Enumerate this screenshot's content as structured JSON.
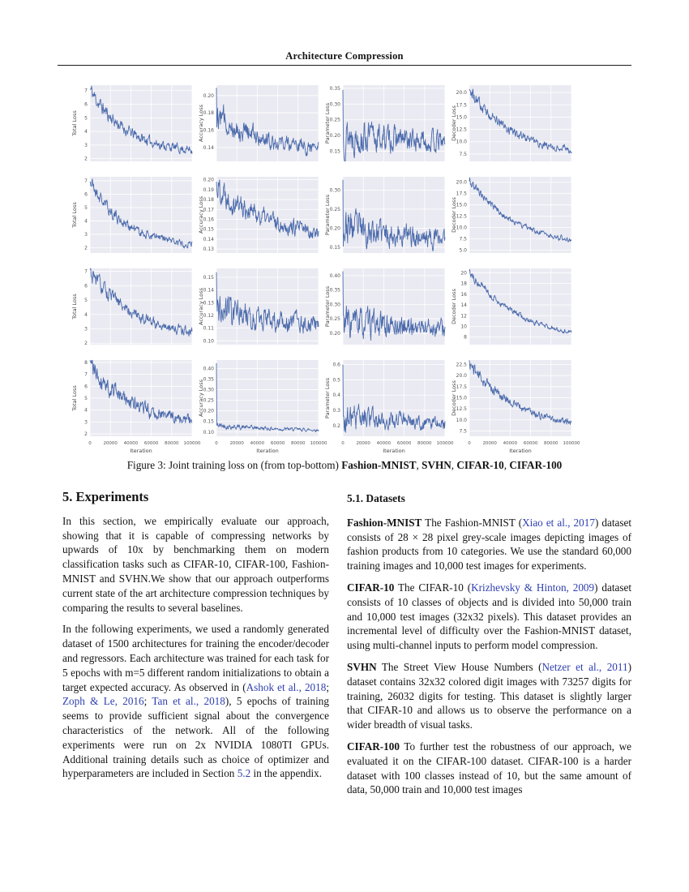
{
  "header": {
    "running_title": "Architecture Compression"
  },
  "figure": {
    "type": "line",
    "line_color": "#4a6aab",
    "bg_color": "#eaeaf2",
    "grid_color": "#ffffff",
    "xlabel": "Iteration",
    "xlim": [
      0,
      100000
    ],
    "xtick_labels": [
      "0",
      "20000",
      "40000",
      "60000",
      "80000",
      "100000"
    ],
    "datasets": [
      "Fashion-MNIST",
      "SVHN",
      "CIFAR-10",
      "CIFAR-100"
    ],
    "caption_segments": [
      {
        "k": "plain",
        "t": "Figure 3: Joint training loss on (from top-bottom) "
      },
      {
        "k": "bold",
        "t": "Fashion-MNIST"
      },
      {
        "k": "plain",
        "t": ", "
      },
      {
        "k": "bold",
        "t": "SVHN"
      },
      {
        "k": "plain",
        "t": ", "
      },
      {
        "k": "bold",
        "t": "CIFAR-10"
      },
      {
        "k": "plain",
        "t": ", "
      },
      {
        "k": "bold",
        "t": "CIFAR-100"
      }
    ],
    "rows": [
      {
        "dataset": "Fashion-MNIST",
        "plots": [
          {
            "ylabel": "Total Loss",
            "ylim": [
              1.8,
              7.4
            ],
            "yticks": [
              2,
              3,
              4,
              5,
              6,
              7
            ],
            "ytick_labels": [
              "2",
              "3",
              "4",
              "5",
              "6",
              "7"
            ],
            "curve": {
              "seed": 11,
              "start": 7.1,
              "end": 2.35,
              "decay": 2.8,
              "noise": 0.5,
              "spike": null
            }
          },
          {
            "ylabel": "Accuracy Loss",
            "ylim": [
              0.124,
              0.212
            ],
            "yticks": [
              0.14,
              0.16,
              0.18,
              0.2
            ],
            "ytick_labels": [
              "0.14",
              "0.16",
              "0.18",
              "0.20"
            ],
            "curve": {
              "seed": 12,
              "start": 0.178,
              "end": 0.134,
              "decay": 2.0,
              "noise": 0.013,
              "spike": 0.209
            }
          },
          {
            "ylabel": "Parameter Loss",
            "ylim": [
              0.118,
              0.36
            ],
            "yticks": [
              0.15,
              0.2,
              0.25,
              0.3,
              0.35
            ],
            "ytick_labels": [
              "0.15",
              "0.20",
              "0.25",
              "0.30",
              "0.35"
            ],
            "curve": {
              "seed": 13,
              "start": 0.205,
              "end": 0.163,
              "decay": 1.0,
              "noise": 0.05,
              "spike": 0.345
            }
          },
          {
            "ylabel": "Decoder Loss",
            "ylim": [
              6.0,
              21.5
            ],
            "yticks": [
              7.5,
              10.0,
              12.5,
              15.0,
              17.5,
              20.0
            ],
            "ytick_labels": [
              "7.5",
              "10.0",
              "12.5",
              "15.0",
              "17.5",
              "20.0"
            ],
            "curve": {
              "seed": 14,
              "start": 20.8,
              "end": 7.0,
              "decay": 2.4,
              "noise": 1.1,
              "spike": null
            }
          }
        ]
      },
      {
        "dataset": "SVHN",
        "plots": [
          {
            "ylabel": "Total Loss",
            "ylim": [
              1.6,
              7.3
            ],
            "yticks": [
              2,
              3,
              4,
              5,
              6,
              7
            ],
            "ytick_labels": [
              "2",
              "3",
              "4",
              "5",
              "6",
              "7"
            ],
            "curve": {
              "seed": 21,
              "start": 7.0,
              "end": 2.05,
              "decay": 3.0,
              "noise": 0.45,
              "spike": null
            }
          },
          {
            "ylabel": "Accuracy Loss",
            "ylim": [
              0.126,
              0.203
            ],
            "yticks": [
              0.13,
              0.14,
              0.15,
              0.16,
              0.17,
              0.18,
              0.19,
              0.2
            ],
            "ytick_labels": [
              "0.13",
              "0.14",
              "0.15",
              "0.16",
              "0.17",
              "0.18",
              "0.19",
              "0.20"
            ],
            "curve": {
              "seed": 22,
              "start": 0.195,
              "end": 0.137,
              "decay": 1.8,
              "noise": 0.012,
              "spike": null
            }
          },
          {
            "ylabel": "Parameter Loss",
            "ylim": [
              0.135,
              0.335
            ],
            "yticks": [
              0.15,
              0.2,
              0.25,
              0.3
            ],
            "ytick_labels": [
              "0.15",
              "0.20",
              "0.25",
              "0.30"
            ],
            "curve": {
              "seed": 23,
              "start": 0.205,
              "end": 0.156,
              "decay": 1.1,
              "noise": 0.04,
              "spike": 0.327
            }
          },
          {
            "ylabel": "Decoder Loss",
            "ylim": [
              4.4,
              21.2
            ],
            "yticks": [
              5.0,
              7.5,
              10.0,
              12.5,
              15.0,
              17.5,
              20.0
            ],
            "ytick_labels": [
              "5.0",
              "7.5",
              "10.0",
              "12.5",
              "15.0",
              "17.5",
              "20.0"
            ],
            "curve": {
              "seed": 24,
              "start": 20.5,
              "end": 5.7,
              "decay": 2.2,
              "noise": 0.85,
              "spike": null
            }
          }
        ]
      },
      {
        "dataset": "CIFAR-10",
        "plots": [
          {
            "ylabel": "Total Loss",
            "ylim": [
              1.9,
              7.2
            ],
            "yticks": [
              2,
              3,
              4,
              5,
              6,
              7
            ],
            "ytick_labels": [
              "2",
              "3",
              "4",
              "5",
              "6",
              "7"
            ],
            "curve": {
              "seed": 31,
              "start": 6.95,
              "end": 2.3,
              "decay": 2.2,
              "noise": 0.5,
              "spike": null
            }
          },
          {
            "ylabel": "Accuracy Loss",
            "ylim": [
              0.097,
              0.157
            ],
            "yticks": [
              0.1,
              0.11,
              0.12,
              0.13,
              0.14,
              0.15
            ],
            "ytick_labels": [
              "0.10",
              "0.11",
              "0.12",
              "0.13",
              "0.14",
              "0.15"
            ],
            "curve": {
              "seed": 32,
              "start": 0.126,
              "end": 0.104,
              "decay": 1.0,
              "noise": 0.011,
              "spike": 0.154
            }
          },
          {
            "ylabel": "Parameter Loss",
            "ylim": [
              0.16,
              0.425
            ],
            "yticks": [
              0.2,
              0.25,
              0.3,
              0.35,
              0.4
            ],
            "ytick_labels": [
              "0.20",
              "0.25",
              "0.30",
              "0.35",
              "0.40"
            ],
            "curve": {
              "seed": 33,
              "start": 0.235,
              "end": 0.2,
              "decay": 0.7,
              "noise": 0.05,
              "spike": 0.415
            }
          },
          {
            "ylabel": "Decoder Loss",
            "ylim": [
              6.6,
              20.8
            ],
            "yticks": [
              8,
              10,
              12,
              14,
              16,
              18,
              20
            ],
            "ytick_labels": [
              "8",
              "10",
              "12",
              "14",
              "16",
              "18",
              "20"
            ],
            "curve": {
              "seed": 34,
              "start": 20.2,
              "end": 7.2,
              "decay": 2.0,
              "noise": 0.65,
              "spike": null
            }
          }
        ]
      },
      {
        "dataset": "CIFAR-100",
        "plots": [
          {
            "ylabel": "Total Loss",
            "ylim": [
              1.8,
              8.2
            ],
            "yticks": [
              2,
              3,
              4,
              5,
              6,
              7,
              8
            ],
            "ytick_labels": [
              "2",
              "3",
              "4",
              "5",
              "6",
              "7",
              "8"
            ],
            "curve": {
              "seed": 41,
              "start": 7.8,
              "end": 2.6,
              "decay": 2.3,
              "noise": 0.75,
              "spike": null
            }
          },
          {
            "ylabel": "Accuracy Loss",
            "ylim": [
              0.08,
              0.44
            ],
            "yticks": [
              0.1,
              0.15,
              0.2,
              0.25,
              0.3,
              0.35,
              0.4
            ],
            "ytick_labels": [
              "0.10",
              "0.15",
              "0.20",
              "0.25",
              "0.30",
              "0.35",
              "0.40"
            ],
            "curve": {
              "seed": 42,
              "start": 0.132,
              "end": 0.102,
              "decay": 1.4,
              "noise": 0.012,
              "spike": 0.425
            }
          },
          {
            "ylabel": "Parameter Loss",
            "ylim": [
              0.13,
              0.63
            ],
            "yticks": [
              0.2,
              0.3,
              0.4,
              0.5,
              0.6
            ],
            "ytick_labels": [
              "0.2",
              "0.3",
              "0.4",
              "0.5",
              "0.6"
            ],
            "curve": {
              "seed": 43,
              "start": 0.255,
              "end": 0.19,
              "decay": 1.0,
              "noise": 0.07,
              "spike": 0.6
            }
          },
          {
            "ylabel": "Decoder Loss",
            "ylim": [
              6.3,
              23.5
            ],
            "yticks": [
              7.5,
              10.0,
              12.5,
              15.0,
              17.5,
              20.0,
              22.5
            ],
            "ytick_labels": [
              "7.5",
              "10.0",
              "12.5",
              "15.0",
              "17.5",
              "20.0",
              "22.5"
            ],
            "curve": {
              "seed": 44,
              "start": 22.8,
              "end": 7.5,
              "decay": 2.1,
              "noise": 1.2,
              "spike": null
            }
          }
        ]
      }
    ]
  },
  "left_column": {
    "section_heading": "5. Experiments",
    "para1": [
      {
        "k": "plain",
        "t": "In this section, we empirically evaluate our approach, showing that it is capable of compressing networks by upwards of 10x by benchmarking them on modern classification tasks such as CIFAR-10, CIFAR-100, Fashion-MNIST and SVHN.We show that our approach outperforms current state of the art architecture compression techniques by comparing the results to several baselines."
      }
    ],
    "para2": [
      {
        "k": "plain",
        "t": "In the following experiments, we used a randomly generated dataset of 1500 architectures for training the encoder/decoder and regressors.  Each architecture was trained for each task for 5 epochs with m=5 different random initializations to obtain a target expected accuracy.  As observed in ("
      },
      {
        "k": "link",
        "t": "Ashok et al., 2018"
      },
      {
        "k": "plain",
        "t": "; "
      },
      {
        "k": "link",
        "t": "Zoph & Le, 2016"
      },
      {
        "k": "plain",
        "t": "; "
      },
      {
        "k": "link",
        "t": "Tan et al., 2018"
      },
      {
        "k": "plain",
        "t": "), 5 epochs of training seems to provide sufficient signal about the convergence characteristics of the network.  All of the following experiments were run on 2x NVIDIA 1080TI GPUs.  Additional training details such as choice of optimizer and hyperparameters are included in Section "
      },
      {
        "k": "link",
        "t": "5.2"
      },
      {
        "k": "plain",
        "t": " in the appendix."
      }
    ]
  },
  "right_column": {
    "subsection_heading": "5.1. Datasets",
    "paras": [
      [
        {
          "k": "bold",
          "t": "Fashion-MNIST"
        },
        {
          "k": "plain",
          "t": " The Fashion-MNIST ("
        },
        {
          "k": "link",
          "t": "Xiao et al., 2017"
        },
        {
          "k": "plain",
          "t": ") dataset consists of 28 × 28 pixel grey-scale images depicting images of fashion products from 10 categories. We use the standard 60,000 training images and 10,000 test images for experiments."
        }
      ],
      [
        {
          "k": "bold",
          "t": "CIFAR-10"
        },
        {
          "k": "plain",
          "t": " The CIFAR-10 ("
        },
        {
          "k": "link",
          "t": "Krizhevsky & Hinton, 2009"
        },
        {
          "k": "plain",
          "t": ") dataset consists of 10 classes of objects and is divided into 50,000 train and 10,000 test images (32x32 pixels).  This dataset provides an incremental level of difficulty over the Fashion-MNIST dataset, using multi-channel inputs to perform model compression."
        }
      ],
      [
        {
          "k": "bold",
          "t": "SVHN"
        },
        {
          "k": "plain",
          "t": " The Street View House Numbers ("
        },
        {
          "k": "link",
          "t": "Netzer et al., 2011"
        },
        {
          "k": "plain",
          "t": ") dataset contains 32x32 colored digit images with 73257 digits for training, 26032 digits for testing.  This dataset is slightly larger that CIFAR-10 and allows us to observe the performance on a wider breadth of visual tasks."
        }
      ],
      [
        {
          "k": "bold",
          "t": "CIFAR-100"
        },
        {
          "k": "plain",
          "t": " To further test the robustness of our approach, we evaluated it on the CIFAR-100 dataset.  CIFAR-100 is a harder dataset with 100 classes instead of 10, but the same amount of data, 50,000 train and 10,000 test images"
        }
      ]
    ]
  }
}
